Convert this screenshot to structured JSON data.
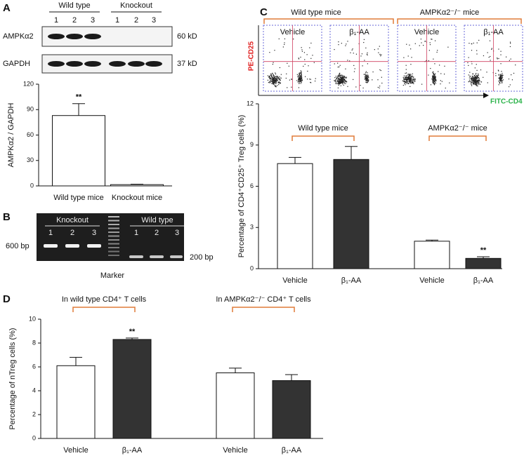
{
  "panel_labels": [
    "A",
    "B",
    "C",
    "D"
  ],
  "blot": {
    "groups": [
      "Wild type",
      "Knockout"
    ],
    "lanes": [
      "1",
      "2",
      "3",
      "1",
      "2",
      "3"
    ],
    "rows": [
      {
        "name": "AMPKα2",
        "size": "60 kD"
      },
      {
        "name": "GAPDH",
        "size": "37 kD"
      }
    ]
  },
  "gel": {
    "groups": [
      "Knockout",
      "Wild type"
    ],
    "lanes": [
      "1",
      "2",
      "3",
      "1",
      "2",
      "3"
    ],
    "left_size": "600 bp",
    "right_size": "200 bp",
    "marker": "Marker"
  },
  "flow": {
    "groups": [
      "Wild type mice",
      "AMPKα2⁻/⁻ mice"
    ],
    "plots": [
      "Vehicle",
      "β₁-AA",
      "Vehicle",
      "β₁-AA"
    ],
    "y_label": "PE-CD25",
    "x_label": "FITC-CD4"
  },
  "chart_data": [
    {
      "type": "bar",
      "ylabel": "AMPKα2 / GAPDH",
      "categories": [
        "Wild type mice",
        "Knockout mice"
      ],
      "values": [
        83,
        1.5
      ],
      "errors": [
        14,
        0.5
      ],
      "colors": [
        "#ffffff",
        "#ffffff"
      ],
      "significance": [
        "**",
        null
      ],
      "ylim": [
        0,
        120
      ],
      "yticks": [
        0,
        30,
        60,
        90,
        120
      ]
    },
    {
      "type": "bar",
      "ylabel": "Percentage of CD4⁺CD25⁺ Treg cells (%)",
      "groups": [
        "Wild type mice",
        "AMPKα2⁻/⁻ mice"
      ],
      "categories": [
        "Vehicle",
        "β₁-AA",
        "Vehicle",
        "β₁-AA"
      ],
      "values": [
        7.65,
        7.95,
        2.0,
        0.75
      ],
      "errors": [
        0.45,
        0.95,
        0.08,
        0.12
      ],
      "colors": [
        "#ffffff",
        "#333333",
        "#ffffff",
        "#333333"
      ],
      "significance": [
        null,
        null,
        null,
        "**"
      ],
      "ylim": [
        0,
        12
      ],
      "yticks": [
        0,
        3,
        6,
        9,
        12
      ]
    },
    {
      "type": "bar",
      "ylabel": "Percentage of nTreg cells (%)",
      "groups": [
        "In wild type CD4⁺ T cells",
        "In AMPKα2⁻/⁻ CD4⁺ T cells"
      ],
      "categories": [
        "Vehicle",
        "β₁-AA",
        "Vehicle",
        "β₁-AA"
      ],
      "values": [
        6.1,
        8.3,
        5.5,
        4.85
      ],
      "errors": [
        0.7,
        0.12,
        0.4,
        0.5
      ],
      "colors": [
        "#ffffff",
        "#333333",
        "#ffffff",
        "#333333"
      ],
      "significance": [
        null,
        "**",
        null,
        null
      ],
      "ylim": [
        0,
        10
      ],
      "yticks": [
        0,
        2,
        4,
        6,
        8,
        10
      ]
    }
  ]
}
